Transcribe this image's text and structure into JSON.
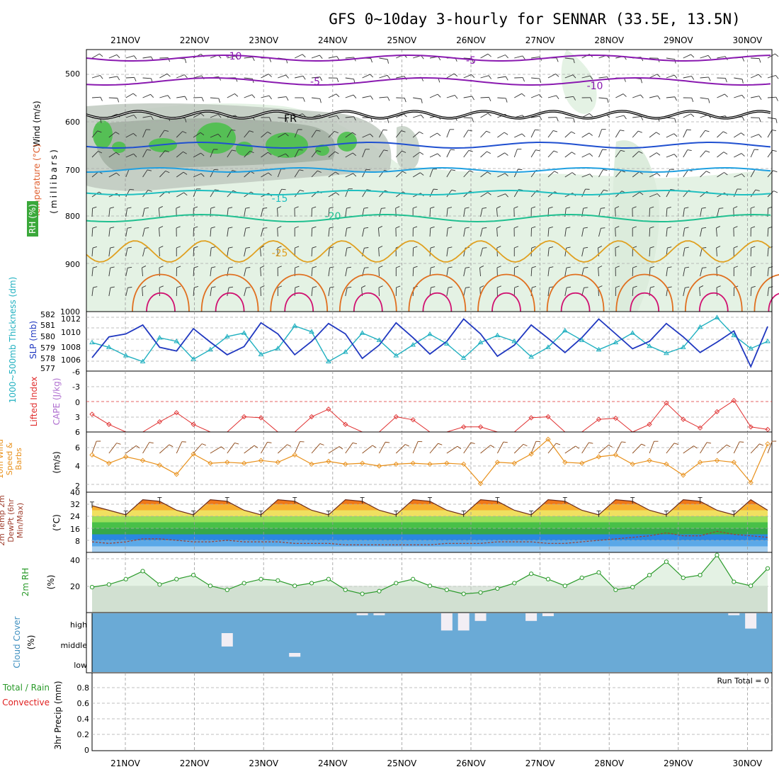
{
  "title": "GFS 0~10day 3-hourly for SENNAR (33.5E, 13.5N)",
  "dates": [
    "21NOV",
    "22NOV",
    "23NOV",
    "24NOV",
    "25NOV",
    "26NOV",
    "27NOV",
    "28NOV",
    "29NOV",
    "30NOV"
  ],
  "colors": {
    "rh": "#2e9e2e",
    "temp": "#e06030",
    "wind": "#8b4513",
    "thickness": "#20b0c0",
    "slp": "#2038c0",
    "li": "#e03030",
    "cape": "#b070d0",
    "spd": "#e8901a",
    "dewpt": "#a04030",
    "rh2m": "#2a9a2a",
    "cloud": "#4090c0",
    "conv": "#e02020"
  },
  "panels": {
    "upper": {
      "ylabel_parts": [
        "Wind (m/s)",
        "Temperature (°C)",
        "RH (%)",
        "(millibars)"
      ],
      "yticks": [
        "500",
        "600",
        "700",
        "800",
        "900",
        "1000"
      ],
      "isotherm_labels": [
        "-10",
        "-5",
        "FR",
        "-5",
        "-10",
        "-15",
        "-20",
        "-25"
      ]
    },
    "slp": {
      "ylabel_left": "1000~500mb Thickness (dm)",
      "ylabel_right": "SLP (mb)",
      "thick_ticks": [
        "577",
        "578",
        "579",
        "580",
        "581",
        "582"
      ],
      "slp_ticks": [
        "1006",
        "1008",
        "1010",
        "1012"
      ]
    },
    "li": {
      "ylabel_li": "Lifted Index",
      "ylabel_cape": "CAPE (J/kg)",
      "yticks": [
        "-6",
        "-3",
        "0",
        "3",
        "6"
      ]
    },
    "wind10": {
      "ylabel": "10m Wind Speed & Barbs",
      "unit": "(m/s)",
      "yticks": [
        "2",
        "4",
        "6"
      ]
    },
    "temp2m": {
      "ylabel": "2m Temp 2m DewPt (6hr Min/Max)",
      "unit": "(°C)",
      "yticks": [
        "8",
        "16",
        "24",
        "32",
        "40"
      ]
    },
    "rh2m": {
      "ylabel": "2m RH",
      "unit": "(%)",
      "yticks": [
        "20",
        "40"
      ]
    },
    "cloud": {
      "ylabel": "Cloud Cover",
      "unit": "(%)",
      "levels": [
        "high",
        "middle",
        "low"
      ]
    },
    "precip": {
      "ylabel_total": "Total / Rain",
      "ylabel_conv": "Convective",
      "ylabel_unit": "3hr Precip (mm)",
      "yticks": [
        "0",
        "0.2",
        "0.4",
        "0.6",
        "0.8"
      ],
      "run_total": "Run Total = 0"
    }
  },
  "chart_data": [
    {
      "type": "line",
      "name": "1000~500mb thickness and SLP",
      "x_hours": [
        0,
        6,
        12,
        18,
        24,
        30,
        36,
        42,
        48,
        54,
        60,
        66,
        72,
        78,
        84,
        90,
        96,
        102,
        108,
        114,
        120,
        126,
        132,
        138,
        144,
        150,
        156,
        162,
        168,
        174,
        180,
        186,
        192,
        198,
        204,
        210,
        216,
        222,
        228,
        234,
        240
      ],
      "series": [
        {
          "name": "Thickness (dm)",
          "values": [
            579.4,
            579.0,
            578.3,
            577.8,
            579.8,
            579.5,
            578.0,
            578.8,
            579.9,
            580.2,
            578.4,
            578.9,
            580.8,
            580.3,
            577.8,
            578.6,
            580.2,
            579.6,
            578.3,
            579.2,
            580.1,
            579.3,
            578.1,
            579.4,
            580.0,
            579.5,
            578.2,
            579.0,
            580.4,
            579.6,
            578.8,
            579.4,
            580.2,
            579.1,
            578.5,
            579.0,
            580.7,
            581.5,
            580.0,
            578.9,
            579.5
          ]
        },
        {
          "name": "SLP (mb)",
          "values": [
            1006.8,
            1009.6,
            1010.0,
            1011.2,
            1008.2,
            1007.7,
            1010.7,
            1008.9,
            1007.2,
            1008.3,
            1011.5,
            1010.0,
            1007.2,
            1009.0,
            1011.4,
            1010.0,
            1006.7,
            1008.5,
            1011.5,
            1009.5,
            1007.3,
            1009.0,
            1012.0,
            1010.0,
            1007.0,
            1008.5,
            1011.2,
            1009.4,
            1007.5,
            1009.5,
            1012.0,
            1010.0,
            1008.0,
            1009.0,
            1011.4,
            1009.6,
            1007.5,
            1008.9,
            1010.4,
            1005.6,
            1011.0
          ]
        }
      ],
      "xlabel": "",
      "ylim_thickness": [
        577,
        582
      ],
      "ylim_slp": [
        1005,
        1013
      ]
    },
    {
      "type": "line",
      "name": "Lifted Index",
      "x_hours": [
        0,
        6,
        12,
        18,
        24,
        30,
        36,
        42,
        48,
        54,
        60,
        66,
        72,
        78,
        84,
        90,
        96,
        102,
        108,
        114,
        120,
        126,
        132,
        138,
        144,
        150,
        156,
        162,
        168,
        174,
        180,
        186,
        192,
        198,
        204,
        210,
        216,
        222,
        228,
        234,
        240
      ],
      "series": [
        {
          "name": "Lifted Index",
          "values": [
            2.5,
            4.5,
            7.5,
            6.8,
            4.0,
            2.2,
            4.5,
            7.2,
            6.9,
            3.0,
            3.2,
            7.3,
            7.0,
            3.0,
            1.5,
            4.5,
            7.2,
            6.8,
            3.0,
            3.6,
            7.0,
            7.0,
            5.0,
            5.0,
            7.2,
            6.8,
            3.2,
            3.0,
            7.1,
            6.9,
            3.5,
            3.3,
            7.2,
            4.5,
            0.3,
            3.5,
            5.2,
            2.0,
            -0.2,
            5.0,
            5.5
          ]
        }
      ],
      "ylim": [
        6,
        -6
      ]
    },
    {
      "type": "line",
      "name": "10m Wind Speed",
      "x_hours": [
        0,
        6,
        12,
        18,
        24,
        30,
        36,
        42,
        48,
        54,
        60,
        66,
        72,
        78,
        84,
        90,
        96,
        102,
        108,
        114,
        120,
        126,
        132,
        138,
        144,
        150,
        156,
        162,
        168,
        174,
        180,
        186,
        192,
        198,
        204,
        210,
        216,
        222,
        228,
        234,
        240
      ],
      "series": [
        {
          "name": "Wind speed (m/s)",
          "values": [
            5.2,
            4.3,
            5.0,
            4.6,
            4.1,
            3.1,
            5.3,
            4.3,
            4.4,
            4.3,
            4.6,
            4.4,
            5.2,
            4.2,
            4.5,
            4.2,
            4.3,
            4.0,
            4.2,
            4.3,
            4.2,
            4.3,
            4.2,
            2.1,
            4.4,
            4.3,
            5.3,
            6.9,
            4.4,
            4.3,
            5.0,
            5.2,
            4.2,
            4.6,
            4.2,
            3.0,
            4.4,
            4.6,
            4.4,
            2.2,
            6.4
          ]
        }
      ],
      "ylim": [
        2,
        7
      ]
    },
    {
      "type": "area",
      "name": "2m Temp and DewPt",
      "x_hours": [
        0,
        6,
        12,
        18,
        24,
        30,
        36,
        42,
        48,
        54,
        60,
        66,
        72,
        78,
        84,
        90,
        96,
        102,
        108,
        114,
        120,
        126,
        132,
        138,
        144,
        150,
        156,
        162,
        168,
        174,
        180,
        186,
        192,
        198,
        204,
        210,
        216,
        222,
        228,
        234,
        240
      ],
      "series": [
        {
          "name": "2m Temp (°C)",
          "values": [
            31,
            28,
            25,
            35,
            34,
            28,
            25,
            35,
            34,
            28,
            25,
            35,
            34,
            28,
            25,
            35,
            34,
            28,
            25,
            35,
            34,
            28,
            25,
            35,
            34,
            28,
            25,
            35,
            34,
            28,
            25,
            35,
            34,
            28,
            25,
            35,
            34,
            28,
            25,
            35,
            28
          ]
        },
        {
          "name": "2m DewPt (°C)",
          "values": [
            7,
            6,
            7,
            9,
            9,
            8,
            7,
            7,
            8,
            7,
            7,
            7,
            6,
            6,
            6,
            5,
            5,
            5,
            5,
            5,
            5,
            6,
            6,
            6,
            7,
            7,
            7,
            6,
            6,
            7,
            8,
            9,
            10,
            11,
            13,
            11,
            11,
            14,
            12,
            11,
            10
          ]
        }
      ],
      "ylim": [
        0,
        40
      ]
    },
    {
      "type": "area",
      "name": "2m RH",
      "x_hours": [
        0,
        6,
        12,
        18,
        24,
        30,
        36,
        42,
        48,
        54,
        60,
        66,
        72,
        78,
        84,
        90,
        96,
        102,
        108,
        114,
        120,
        126,
        132,
        138,
        144,
        150,
        156,
        162,
        168,
        174,
        180,
        186,
        192,
        198,
        204,
        210,
        216,
        222,
        228,
        234,
        240
      ],
      "series": [
        {
          "name": "2m RH (%)",
          "values": [
            19,
            21,
            25,
            31,
            21,
            25,
            28,
            20,
            17,
            22,
            25,
            24,
            20,
            22,
            25,
            17,
            14,
            16,
            22,
            25,
            20,
            17,
            14,
            15,
            18,
            22,
            29,
            25,
            20,
            26,
            30,
            17,
            19,
            28,
            38,
            26,
            28,
            43,
            23,
            20,
            33
          ]
        }
      ],
      "ylim": [
        0,
        45
      ]
    },
    {
      "type": "bar",
      "name": "Cloud Cover",
      "levels": [
        "high",
        "middle",
        "low"
      ],
      "x_hours": [
        0,
        6,
        12,
        18,
        24,
        30,
        36,
        42,
        48,
        54,
        60,
        66,
        72,
        78,
        84,
        90,
        96,
        102,
        108,
        114,
        120,
        126,
        132,
        138,
        144,
        150,
        156,
        162,
        168,
        174,
        180,
        186,
        192,
        198,
        204,
        210,
        216,
        222,
        228,
        234,
        240
      ],
      "series": [
        {
          "name": "high (%)",
          "values": [
            0,
            0,
            0,
            0,
            0,
            0,
            0,
            0,
            0,
            0,
            0,
            0,
            0,
            0,
            0,
            0,
            10,
            10,
            0,
            0,
            0,
            90,
            90,
            40,
            0,
            0,
            40,
            15,
            0,
            0,
            0,
            0,
            0,
            0,
            0,
            0,
            0,
            0,
            10,
            80,
            0
          ]
        },
        {
          "name": "middle (%)",
          "values": [
            0,
            0,
            0,
            0,
            0,
            0,
            0,
            0,
            70,
            0,
            0,
            0,
            0,
            0,
            0,
            0,
            0,
            0,
            0,
            0,
            0,
            0,
            0,
            0,
            0,
            0,
            0,
            0,
            0,
            0,
            0,
            0,
            0,
            0,
            0,
            0,
            0,
            0,
            0,
            0,
            0
          ]
        },
        {
          "name": "low (%)",
          "values": [
            0,
            0,
            0,
            0,
            0,
            0,
            0,
            0,
            0,
            0,
            0,
            0,
            20,
            0,
            0,
            0,
            0,
            0,
            0,
            0,
            0,
            0,
            0,
            0,
            0,
            0,
            0,
            0,
            0,
            0,
            0,
            0,
            0,
            0,
            0,
            0,
            0,
            0,
            0,
            0,
            0
          ]
        }
      ]
    },
    {
      "type": "bar",
      "name": "3hr Precip",
      "series": [
        {
          "name": "3hr Precip (mm)",
          "values": [
            0,
            0,
            0,
            0,
            0,
            0,
            0,
            0,
            0,
            0,
            0,
            0,
            0,
            0,
            0,
            0,
            0,
            0,
            0,
            0,
            0,
            0,
            0,
            0,
            0,
            0,
            0,
            0,
            0,
            0,
            0,
            0,
            0,
            0,
            0,
            0,
            0,
            0,
            0,
            0,
            0
          ]
        }
      ],
      "ylim": [
        0,
        0.9
      ]
    }
  ]
}
